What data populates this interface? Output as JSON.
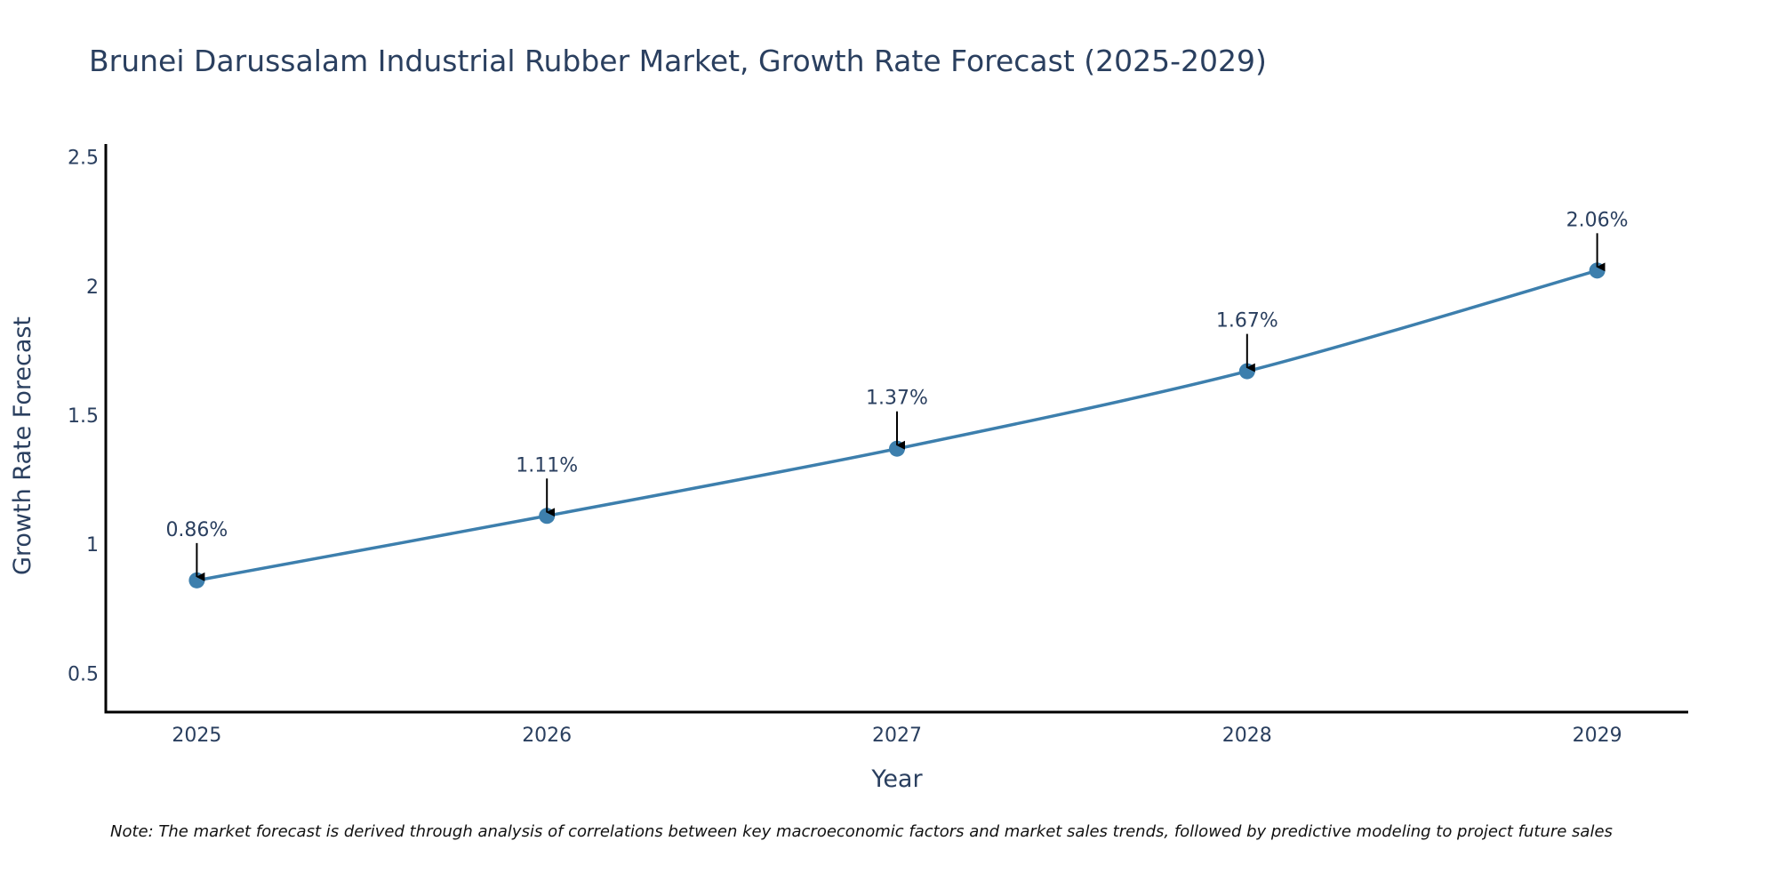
{
  "chart_data": {
    "type": "line",
    "title": "Brunei Darussalam Industrial Rubber Market, Growth Rate Forecast (2025-2029)",
    "xlabel": "Year",
    "ylabel": "Growth Rate Forecast",
    "categories": [
      "2025",
      "2026",
      "2027",
      "2028",
      "2029"
    ],
    "x": [
      2025,
      2026,
      2027,
      2028,
      2029
    ],
    "series": [
      {
        "name": "Growth Rate Forecast",
        "values": [
          0.86,
          1.11,
          1.37,
          1.67,
          2.06
        ],
        "color": "#3d7fad"
      }
    ],
    "data_labels": [
      "0.86%",
      "1.11%",
      "1.37%",
      "1.67%",
      "2.06%"
    ],
    "y_ticks": [
      0.5,
      1,
      1.5,
      2,
      2.5
    ],
    "y_tick_labels": [
      "0.5",
      "1",
      "1.5",
      "2",
      "2.5"
    ],
    "x_tick_labels": [
      "2025",
      "2026",
      "2027",
      "2028",
      "2029"
    ],
    "ylim": [
      0.35,
      2.55
    ],
    "xlim": [
      2024.74,
      2029.26
    ],
    "grid": false,
    "legend": "none",
    "annotation_arrow_color": "#000000",
    "axis_color": "#000000",
    "text_color": "#2a3f5f"
  },
  "note": "Note: The market forecast is derived through analysis of correlations between key macroeconomic factors and market sales trends, followed by predictive modeling to project future sales"
}
